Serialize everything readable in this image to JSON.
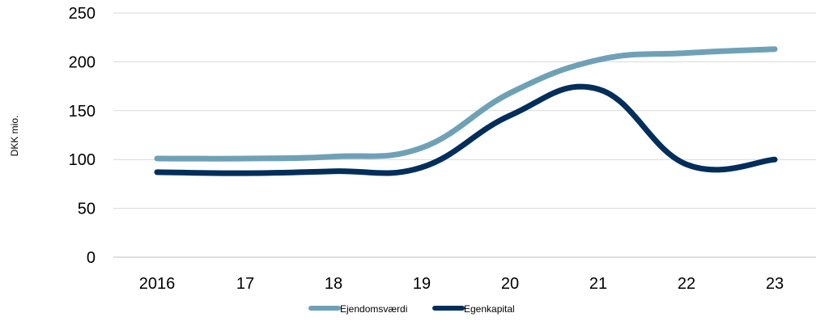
{
  "chart_data": {
    "type": "line",
    "title": "",
    "xlabel": "",
    "ylabel": "DKK mio.",
    "categories": [
      "2016",
      "17",
      "18",
      "19",
      "20",
      "21",
      "22",
      "23"
    ],
    "ylim": [
      0,
      250
    ],
    "yticks": [
      0,
      50,
      100,
      150,
      200,
      250
    ],
    "grid": "horizontal",
    "legend_position": "bottom",
    "series": [
      {
        "name": "Ejendomsværdi",
        "color": "#6fa1b6",
        "values": [
          101,
          101,
          103,
          112,
          168,
          202,
          209,
          213
        ]
      },
      {
        "name": "Egenkapital",
        "color": "#012e5a",
        "values": [
          87,
          86,
          88,
          92,
          145,
          172,
          95,
          100
        ]
      }
    ]
  }
}
